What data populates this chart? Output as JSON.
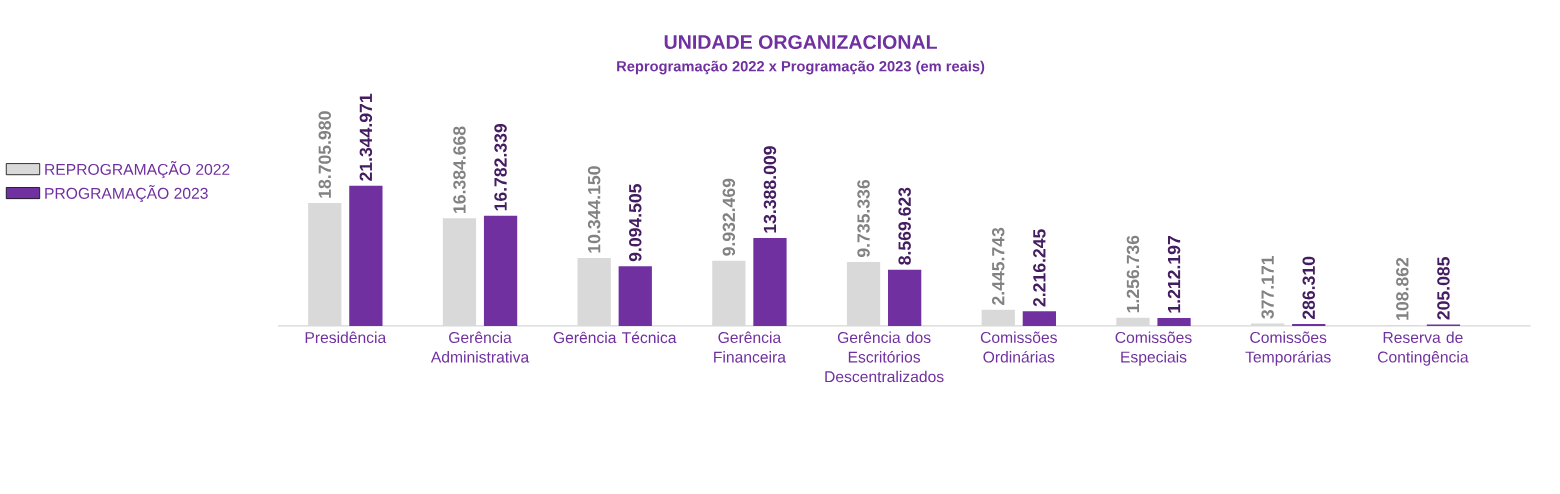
{
  "chart_data": {
    "type": "bar",
    "title": "UNIDADE ORGANIZACIONAL",
    "subtitle": "Reprogramação 2022 x Programação 2023 (em reais)",
    "categories": [
      "Presidência",
      "Gerência Administrativa",
      "Gerência Técnica",
      "Gerência Financeira",
      "Gerência dos Escritórios Descentralizados",
      "Comissões Ordinárias",
      "Comissões Especiais",
      "Comissões Temporárias",
      "Reserva de Contingência"
    ],
    "series": [
      {
        "name": "REPROGRAMAÇÃO 2022",
        "color": "#d9d9d9",
        "values": [
          18705980,
          16384668,
          10344150,
          9932469,
          9735336,
          2445743,
          1256736,
          377171,
          108862
        ],
        "value_labels": [
          "18.705.980",
          "16.384.668",
          "10.344.150",
          "9.932.469",
          "9.735.336",
          "2.445.743",
          "1.256.736",
          "377.171",
          "108.862"
        ]
      },
      {
        "name": "PROGRAMAÇÃO 2023",
        "color": "#7030a0",
        "values": [
          21344971,
          16782339,
          9094505,
          13388009,
          8569623,
          2216245,
          1212197,
          286310,
          205085
        ],
        "value_labels": [
          "21.344.971",
          "16.782.339",
          "9.094.505",
          "13.388.009",
          "8.569.623",
          "2.216.245",
          "1.212.197",
          "286.310",
          "205.085"
        ]
      }
    ],
    "legend": "left"
  }
}
